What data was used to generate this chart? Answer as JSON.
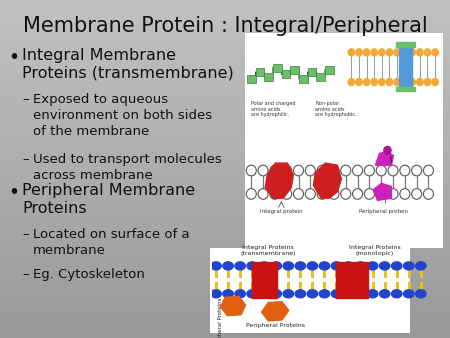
{
  "title": "Membrane Protein : Integral/Peripheral",
  "title_fontsize": 15,
  "title_color": "#1a1a1a",
  "bullet1": "Integral Membrane\nProteins (transmembrane)",
  "bullet1_fontsize": 11.5,
  "sub1a": "Exposed to aqueous\nenvironment on both sides\nof the membrane",
  "sub1b": "Used to transport molecules\nacross membrane",
  "bullet2": "Peripheral Membrane\nProteins",
  "bullet2_fontsize": 11.5,
  "sub2a": "Located on surface of a\nmembrane",
  "sub2b": "Eg. Cytoskeleton",
  "sub_fontsize": 9.5,
  "text_color": "#111111"
}
